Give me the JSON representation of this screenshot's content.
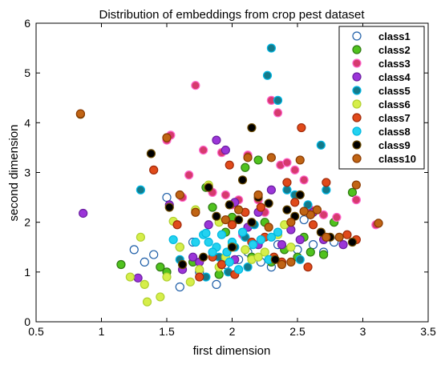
{
  "chart_data": {
    "type": "scatter",
    "title": "Distribution of embeddings from crop pest dataset",
    "xlabel": "first dimension",
    "ylabel": "second dimension",
    "xlim": [
      0.5,
      3.5
    ],
    "ylim": [
      0,
      6
    ],
    "xticks": [
      "0.5",
      "1",
      "1.5",
      "2",
      "2.5",
      "3",
      "3.5"
    ],
    "yticks": [
      "0",
      "1",
      "2",
      "3",
      "4",
      "5",
      "6"
    ],
    "grid": false,
    "legend_position": "top-right",
    "series": [
      {
        "name": "class1",
        "fill": "#ffffff",
        "edge": "#1f5fa8",
        "points": [
          [
            1.25,
            1.45
          ],
          [
            1.33,
            1.2
          ],
          [
            1.4,
            1.35
          ],
          [
            1.5,
            2.5
          ],
          [
            1.6,
            0.7
          ],
          [
            1.75,
            1.0
          ],
          [
            1.88,
            0.75
          ],
          [
            1.95,
            1.15
          ],
          [
            2.05,
            1.25
          ],
          [
            2.12,
            1.4
          ],
          [
            2.22,
            1.2
          ],
          [
            2.35,
            1.55
          ],
          [
            2.5,
            1.45
          ],
          [
            2.55,
            2.05
          ],
          [
            2.62,
            1.55
          ],
          [
            2.7,
            1.4
          ],
          [
            2.78,
            1.6
          ],
          [
            2.1,
            1.7
          ],
          [
            1.7,
            1.6
          ],
          [
            2.3,
            1.1
          ]
        ]
      },
      {
        "name": "class2",
        "fill": "#50c21e",
        "edge": "#2f7a12",
        "points": [
          [
            1.15,
            1.15
          ],
          [
            1.5,
            1.0
          ],
          [
            1.6,
            1.5
          ],
          [
            1.7,
            1.2
          ],
          [
            1.8,
            2.7
          ],
          [
            1.85,
            2.3
          ],
          [
            1.95,
            1.8
          ],
          [
            2.1,
            3.1
          ],
          [
            2.2,
            3.25
          ],
          [
            2.25,
            2.0
          ],
          [
            2.3,
            1.2
          ],
          [
            2.4,
            1.45
          ],
          [
            2.5,
            1.3
          ],
          [
            2.55,
            1.7
          ],
          [
            2.6,
            1.4
          ],
          [
            2.7,
            1.35
          ],
          [
            2.78,
            2.0
          ],
          [
            2.92,
            2.6
          ],
          [
            1.45,
            1.1
          ],
          [
            2.0,
            2.1
          ],
          [
            1.9,
            0.95
          ],
          [
            2.15,
            1.3
          ]
        ]
      },
      {
        "name": "class3",
        "fill": "#d63a6e",
        "edge": "#ff66cc",
        "points": [
          [
            1.53,
            3.75
          ],
          [
            1.5,
            3.65
          ],
          [
            1.62,
            2.5
          ],
          [
            1.67,
            2.95
          ],
          [
            1.72,
            4.75
          ],
          [
            1.78,
            3.45
          ],
          [
            1.85,
            2.6
          ],
          [
            1.92,
            3.4
          ],
          [
            1.95,
            2.55
          ],
          [
            2.0,
            2.35
          ],
          [
            2.05,
            2.45
          ],
          [
            2.12,
            3.35
          ],
          [
            2.2,
            2.45
          ],
          [
            2.3,
            4.45
          ],
          [
            2.35,
            4.2
          ],
          [
            2.37,
            3.15
          ],
          [
            2.42,
            3.2
          ],
          [
            2.48,
            3.05
          ],
          [
            2.55,
            2.85
          ],
          [
            2.6,
            2.25
          ],
          [
            2.7,
            2.15
          ],
          [
            2.8,
            2.1
          ],
          [
            2.95,
            2.45
          ],
          [
            3.1,
            1.95
          ],
          [
            2.25,
            2.2
          ],
          [
            2.08,
            1.75
          ]
        ]
      },
      {
        "name": "class4",
        "fill": "#9b35d8",
        "edge": "#6b1fa0",
        "points": [
          [
            0.86,
            2.18
          ],
          [
            1.28,
            0.88
          ],
          [
            1.52,
            2.35
          ],
          [
            1.62,
            1.05
          ],
          [
            1.7,
            1.3
          ],
          [
            1.82,
            1.95
          ],
          [
            1.88,
            3.65
          ],
          [
            1.95,
            3.45
          ],
          [
            2.02,
            2.4
          ],
          [
            2.12,
            1.9
          ],
          [
            2.2,
            2.2
          ],
          [
            2.3,
            2.65
          ],
          [
            2.38,
            1.55
          ],
          [
            2.45,
            1.85
          ],
          [
            2.52,
            1.65
          ],
          [
            2.62,
            2.2
          ],
          [
            2.7,
            1.65
          ],
          [
            2.85,
            1.55
          ],
          [
            2.02,
            1.25
          ],
          [
            2.2,
            1.55
          ],
          [
            1.75,
            1.2
          ]
        ]
      },
      {
        "name": "class5",
        "fill": "#147a8a",
        "edge": "#00b8e6",
        "points": [
          [
            1.3,
            2.65
          ],
          [
            1.6,
            1.25
          ],
          [
            1.8,
            0.9
          ],
          [
            1.9,
            1.3
          ],
          [
            2.02,
            1.5
          ],
          [
            2.1,
            1.7
          ],
          [
            2.17,
            1.95
          ],
          [
            2.27,
            4.95
          ],
          [
            2.3,
            5.5
          ],
          [
            2.35,
            4.45
          ],
          [
            2.42,
            2.65
          ],
          [
            2.48,
            2.55
          ],
          [
            2.58,
            2.35
          ],
          [
            2.68,
            3.55
          ],
          [
            2.72,
            2.65
          ],
          [
            2.52,
            1.25
          ],
          [
            1.97,
            1.0
          ],
          [
            2.12,
            1.1
          ]
        ]
      },
      {
        "name": "class6",
        "fill": "#d6ee4a",
        "edge": "#b0d030",
        "points": [
          [
            1.22,
            0.9
          ],
          [
            1.3,
            1.7
          ],
          [
            1.33,
            0.75
          ],
          [
            1.35,
            0.4
          ],
          [
            1.45,
            0.5
          ],
          [
            1.5,
            0.9
          ],
          [
            1.55,
            2.02
          ],
          [
            1.68,
            0.8
          ],
          [
            1.75,
            1.05
          ],
          [
            1.82,
            2.75
          ],
          [
            1.9,
            1.1
          ],
          [
            1.95,
            1.3
          ],
          [
            2.0,
            1.55
          ],
          [
            2.1,
            1.45
          ],
          [
            2.15,
            1.25
          ],
          [
            2.25,
            1.4
          ],
          [
            2.35,
            1.75
          ],
          [
            2.4,
            1.95
          ],
          [
            2.45,
            1.5
          ],
          [
            2.2,
            1.3
          ],
          [
            1.9,
            2.0
          ],
          [
            1.6,
            1.5
          ],
          [
            1.72,
            2.25
          ]
        ]
      },
      {
        "name": "class7",
        "fill": "#e04a1a",
        "edge": "#a02a0a",
        "points": [
          [
            1.4,
            3.05
          ],
          [
            1.58,
            1.95
          ],
          [
            1.75,
            0.9
          ],
          [
            1.85,
            1.3
          ],
          [
            1.92,
            1.15
          ],
          [
            1.98,
            3.15
          ],
          [
            2.02,
            0.95
          ],
          [
            2.1,
            2.2
          ],
          [
            2.15,
            1.6
          ],
          [
            2.22,
            2.3
          ],
          [
            2.32,
            1.3
          ],
          [
            2.38,
            1.2
          ],
          [
            2.42,
            2.8
          ],
          [
            2.48,
            2.4
          ],
          [
            2.53,
            3.9
          ],
          [
            2.58,
            1.1
          ],
          [
            2.62,
            1.95
          ],
          [
            2.72,
            2.8
          ],
          [
            2.88,
            1.75
          ],
          [
            2.95,
            1.65
          ],
          [
            2.0,
            1.95
          ],
          [
            2.25,
            1.7
          ]
        ]
      },
      {
        "name": "class8",
        "fill": "#23d2f0",
        "edge": "#00b8e0",
        "points": [
          [
            1.55,
            1.65
          ],
          [
            1.72,
            1.6
          ],
          [
            1.78,
            1.75
          ],
          [
            1.82,
            1.6
          ],
          [
            1.88,
            1.5
          ],
          [
            1.92,
            1.75
          ],
          [
            1.96,
            1.4
          ],
          [
            2.0,
            1.6
          ],
          [
            2.08,
            1.8
          ],
          [
            2.16,
            1.55
          ],
          [
            2.22,
            1.65
          ],
          [
            2.3,
            1.7
          ],
          [
            2.35,
            1.8
          ],
          [
            1.85,
            1.4
          ],
          [
            1.98,
            1.2
          ],
          [
            2.05,
            1.05
          ],
          [
            2.28,
            1.25
          ],
          [
            1.8,
            1.78
          ]
        ]
      },
      {
        "name": "class9",
        "fill": "#000000",
        "edge": "#6b4a00",
        "points": [
          [
            0.84,
            4.17
          ],
          [
            1.38,
            3.38
          ],
          [
            1.52,
            2.3
          ],
          [
            1.62,
            1.15
          ],
          [
            1.78,
            1.3
          ],
          [
            1.82,
            2.7
          ],
          [
            1.88,
            2.12
          ],
          [
            1.98,
            2.35
          ],
          [
            2.05,
            2.05
          ],
          [
            2.08,
            2.85
          ],
          [
            2.15,
            3.9
          ],
          [
            2.2,
            2.5
          ],
          [
            2.28,
            2.38
          ],
          [
            2.33,
            1.25
          ],
          [
            2.42,
            2.25
          ],
          [
            2.48,
            2.12
          ],
          [
            2.52,
            2.55
          ],
          [
            2.68,
            1.8
          ],
          [
            2.75,
            1.7
          ],
          [
            2.92,
            1.6
          ],
          [
            2.15,
            2.0
          ],
          [
            2.0,
            1.5
          ]
        ]
      },
      {
        "name": "class10",
        "fill": "#c06414",
        "edge": "#8a3a00",
        "points": [
          [
            0.84,
            4.18
          ],
          [
            1.5,
            3.7
          ],
          [
            1.6,
            2.55
          ],
          [
            1.72,
            2.2
          ],
          [
            1.95,
            2.05
          ],
          [
            2.05,
            2.25
          ],
          [
            2.12,
            3.3
          ],
          [
            2.2,
            2.55
          ],
          [
            2.28,
            1.9
          ],
          [
            2.38,
            1.15
          ],
          [
            2.45,
            2.0
          ],
          [
            2.52,
            3.25
          ],
          [
            2.6,
            2.15
          ],
          [
            2.65,
            2.25
          ],
          [
            2.72,
            1.7
          ],
          [
            2.82,
            1.7
          ],
          [
            2.95,
            2.75
          ],
          [
            3.12,
            1.98
          ],
          [
            2.3,
            3.3
          ],
          [
            2.45,
            1.2
          ],
          [
            2.55,
            2.22
          ]
        ]
      }
    ]
  }
}
